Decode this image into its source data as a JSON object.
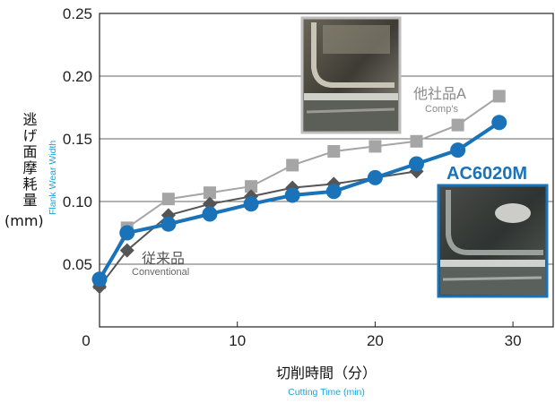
{
  "chart_data": {
    "type": "line",
    "xlabel_jp": "切削時間（分）",
    "xlabel_en": "Cutting Time (min)",
    "ylabel_jp": "逃げ面摩耗量",
    "ylabel_unit": "(mm)",
    "ylabel_en": "Flank Wear Width",
    "xlim": [
      0,
      31
    ],
    "ylim": [
      0,
      0.25
    ],
    "x_ticks": [
      "0",
      "10",
      "20",
      "30"
    ],
    "y_ticks": [
      "0.05",
      "0.10",
      "0.15",
      "0.20",
      "0.25"
    ],
    "grid": "horizontal",
    "series": [
      {
        "name": "他社品A",
        "name_en": "Comp's",
        "color": "#a5a5a5",
        "marker": "square",
        "x": [
          0,
          2,
          5,
          8,
          11,
          14,
          17,
          20,
          23,
          26,
          29
        ],
        "y": [
          0.035,
          0.079,
          0.102,
          0.107,
          0.112,
          0.129,
          0.14,
          0.144,
          0.148,
          0.161,
          0.184
        ]
      },
      {
        "name": "従来品",
        "name_en": "Conventional",
        "color": "#555555",
        "marker": "diamond",
        "x": [
          0,
          2,
          5,
          8,
          11,
          14,
          17,
          20,
          23
        ],
        "y": [
          0.032,
          0.061,
          0.089,
          0.098,
          0.104,
          0.111,
          0.114,
          0.119,
          0.124
        ]
      },
      {
        "name": "AC6020M",
        "color": "#1a72b8",
        "marker": "circle",
        "x": [
          0,
          2,
          5,
          8,
          11,
          14,
          17,
          20,
          23,
          26,
          29
        ],
        "y": [
          0.038,
          0.075,
          0.082,
          0.09,
          0.098,
          0.105,
          0.108,
          0.119,
          0.13,
          0.141,
          0.163
        ]
      }
    ]
  },
  "photos": [
    {
      "caption": "Comp's wear photo",
      "border": "#bdbdbd"
    },
    {
      "caption": "AC6020M wear photo",
      "border": "#1a72b8"
    }
  ]
}
